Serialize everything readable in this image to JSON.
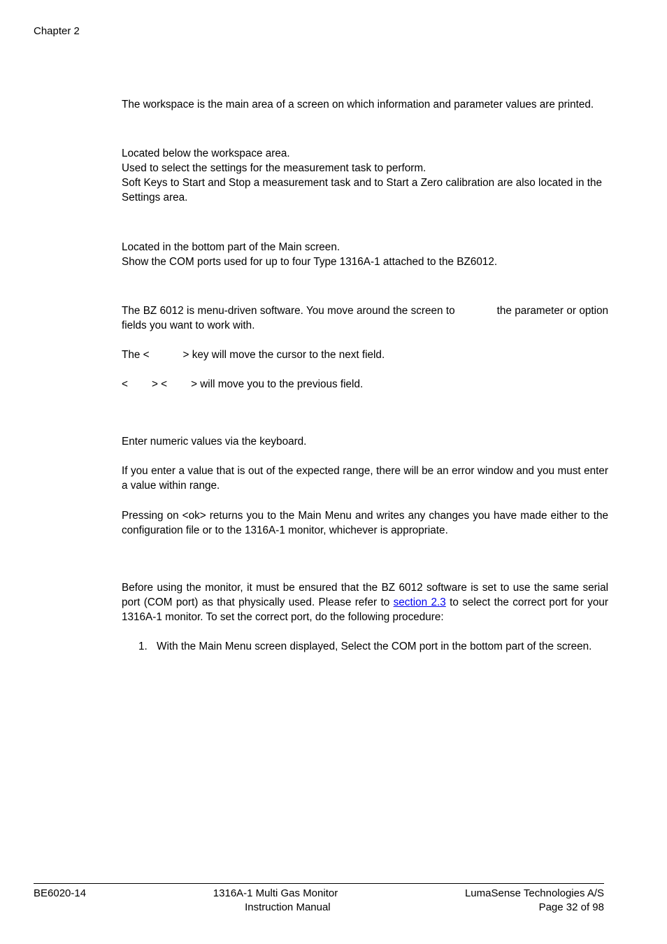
{
  "header": {
    "chapter": "Chapter 2"
  },
  "body": {
    "workspace_para": "The workspace is the main area of a screen on which information and parameter values are printed.",
    "settings_l1": "Located below the workspace area.",
    "settings_l2": "Used to select the settings for the measurement task to perform.",
    "settings_l3": "Soft Keys to Start and Stop a measurement task and to Start a Zero calibration are also located in the Settings area.",
    "com_l1": "Located in the bottom part of the Main screen.",
    "com_l2": "Show the COM ports used for up to four Type 1316A-1 attached to the BZ6012.",
    "nav_para_a": "The BZ 6012 is menu-driven software. You move around the screen to",
    "nav_para_b": "the parameter or option fields you want to work with.",
    "key_a1": "The <",
    "key_a2": "> key will move the cursor to the next field.",
    "key_b1": "<",
    "key_b2": "> <",
    "key_b3": "> will move you to the previous field.",
    "enter_para": "Enter numeric values via the keyboard.",
    "range_para": "If you enter a value that is out of the expected range, there will be an error window and you must enter a value within range.",
    "ok_para": "Pressing on <ok> returns you to the Main Menu and writes any changes you have made either to the configuration file or to the 1316A-1 monitor, whichever is appropriate.",
    "serial_a": "Before using the monitor, it must be ensured that the BZ 6012 software is set to use the same serial port (COM port) as that physically used. Please refer to ",
    "serial_link": "section 2.3",
    "serial_b": " to select the correct port for your 1316A-1 monitor. To set the correct port, do the following procedure:",
    "step1_num": "1.",
    "step1_text": "With the Main Menu screen displayed, Select the COM port in the bottom part of the screen."
  },
  "footer": {
    "left": "BE6020-14",
    "center1": "1316A-1 Multi Gas Monitor",
    "center2": "Instruction Manual",
    "right1": "LumaSense Technologies A/S",
    "right2": "Page 32 of 98"
  },
  "style": {
    "link_color": "#0000ee",
    "text_color": "#000000",
    "background": "#ffffff",
    "font_size_body": 15.3,
    "font_size_header_footer": 15
  }
}
